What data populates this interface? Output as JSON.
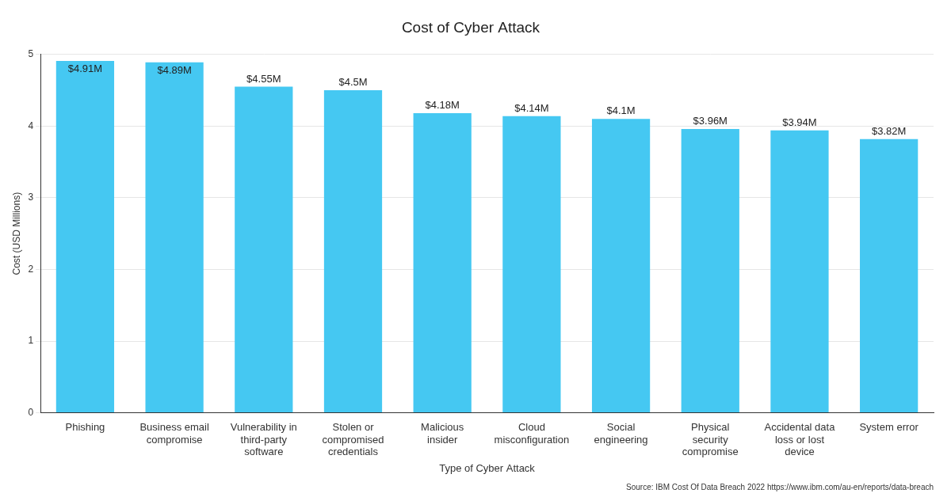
{
  "chart_data": {
    "type": "bar",
    "title": "Cost of Cyber Attack",
    "x_label": "Type of Cyber Attack",
    "y_label": "Cost (USD Millions)",
    "source": "Source: IBM Cost Of Data Breach 2022 https://www.ibm.com/au-en/reports/data-breach",
    "categories": [
      "Phishing",
      "Business email compromise",
      "Vulnerability in third-party software",
      "Stolen or compromised credentials",
      "Malicious insider",
      "Cloud misconfiguration",
      "Social engineering",
      "Physical security compromise",
      "Accidental data loss or lost device",
      "System error"
    ],
    "values": [
      4.91,
      4.89,
      4.55,
      4.5,
      4.18,
      4.14,
      4.1,
      3.96,
      3.94,
      3.82
    ],
    "value_labels": [
      "$4.91M",
      "$4.89M",
      "$4.55M",
      "$4.5M",
      "$4.18M",
      "$4.14M",
      "$4.1M",
      "$3.96M",
      "$3.94M",
      "$3.82M"
    ],
    "color": "#45c8f2",
    "ylim": [
      0,
      5
    ],
    "yticks": [
      0,
      1,
      2,
      3,
      4,
      5
    ],
    "grid": true,
    "data_labels": true
  }
}
